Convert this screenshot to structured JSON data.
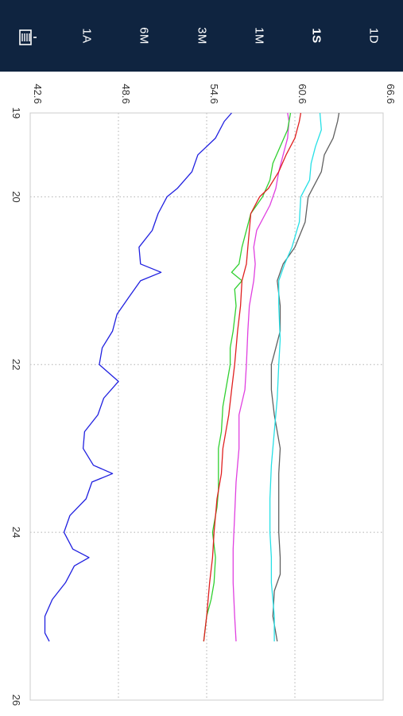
{
  "toolbar": {
    "ranges": [
      {
        "id": "1D",
        "label": "1D",
        "selected": false
      },
      {
        "id": "1S",
        "label": "1S",
        "selected": true
      },
      {
        "id": "1M",
        "label": "1M",
        "selected": false
      },
      {
        "id": "3M",
        "label": "3M",
        "selected": false
      },
      {
        "id": "6M",
        "label": "6M",
        "selected": false
      },
      {
        "id": "1A",
        "label": "1A",
        "selected": false
      }
    ],
    "menu_icon": "list-menu-icon"
  },
  "chart_data": {
    "type": "line",
    "title": "",
    "xlabel": "",
    "ylabel": "",
    "xlim": [
      19,
      26
    ],
    "ylim": [
      42.6,
      66.6
    ],
    "x_ticks": [
      "19",
      "20",
      "22",
      "24",
      "26"
    ],
    "y_ticks": [
      "42.6",
      "48.6",
      "54.6",
      "60.6",
      "66.6"
    ],
    "grid": true,
    "series": [
      {
        "color": "#606060",
        "points": [
          [
            19,
            63.6
          ],
          [
            19.1,
            63.5
          ],
          [
            19.3,
            63.2
          ],
          [
            19.5,
            62.6
          ],
          [
            19.7,
            62.4
          ],
          [
            19.8,
            62.1
          ],
          [
            20,
            61.5
          ],
          [
            20.3,
            61.3
          ],
          [
            20.6,
            60.6
          ],
          [
            20.8,
            59.8
          ],
          [
            21,
            59.4
          ],
          [
            21.3,
            59.6
          ],
          [
            21.6,
            59.6
          ],
          [
            21.8,
            59.3
          ],
          [
            22,
            59.0
          ],
          [
            22.3,
            59.0
          ],
          [
            22.6,
            59.2
          ],
          [
            23,
            59.6
          ],
          [
            23.3,
            59.5
          ],
          [
            23.6,
            59.5
          ],
          [
            24,
            59.5
          ],
          [
            24.3,
            59.6
          ],
          [
            24.5,
            59.6
          ],
          [
            24.7,
            59.2
          ],
          [
            25,
            59.1
          ],
          [
            25.3,
            59.4
          ]
        ]
      },
      {
        "color": "#26e0e6",
        "points": [
          [
            19,
            62.3
          ],
          [
            19.2,
            62.4
          ],
          [
            19.4,
            62.0
          ],
          [
            19.6,
            61.7
          ],
          [
            19.8,
            61.6
          ],
          [
            20,
            61.0
          ],
          [
            20.3,
            60.9
          ],
          [
            20.6,
            60.4
          ],
          [
            20.8,
            59.9
          ],
          [
            21,
            59.5
          ],
          [
            21.3,
            59.5
          ],
          [
            21.7,
            59.6
          ],
          [
            22,
            59.5
          ],
          [
            22.4,
            59.4
          ],
          [
            22.8,
            59.2
          ],
          [
            23.2,
            59.0
          ],
          [
            23.6,
            58.9
          ],
          [
            24,
            58.9
          ],
          [
            24.3,
            59.0
          ],
          [
            24.6,
            59.0
          ],
          [
            25,
            59.2
          ],
          [
            25.3,
            59.2
          ]
        ]
      },
      {
        "color": "#e040e0",
        "points": [
          [
            19,
            60.1
          ],
          [
            19.1,
            60.2
          ],
          [
            19.3,
            60.1
          ],
          [
            19.5,
            59.8
          ],
          [
            19.7,
            59.5
          ],
          [
            19.9,
            59.3
          ],
          [
            20.1,
            58.9
          ],
          [
            20.4,
            58.0
          ],
          [
            20.6,
            57.8
          ],
          [
            20.8,
            57.9
          ],
          [
            21,
            57.8
          ],
          [
            21.3,
            57.5
          ],
          [
            21.6,
            57.4
          ],
          [
            22,
            57.3
          ],
          [
            22.3,
            57.2
          ],
          [
            22.6,
            56.8
          ],
          [
            23,
            56.8
          ],
          [
            23.4,
            56.6
          ],
          [
            23.8,
            56.5
          ],
          [
            24.2,
            56.4
          ],
          [
            24.6,
            56.4
          ],
          [
            25,
            56.5
          ],
          [
            25.3,
            56.6
          ]
        ]
      },
      {
        "color": "#30d030",
        "points": [
          [
            19,
            60.3
          ],
          [
            19.2,
            60.1
          ],
          [
            19.4,
            59.6
          ],
          [
            19.6,
            59.1
          ],
          [
            19.8,
            58.9
          ],
          [
            20,
            58.4
          ],
          [
            20.2,
            57.6
          ],
          [
            20.4,
            57.3
          ],
          [
            20.6,
            57.0
          ],
          [
            20.8,
            56.8
          ],
          [
            20.9,
            56.3
          ],
          [
            21,
            57.0
          ],
          [
            21.1,
            56.5
          ],
          [
            21.3,
            56.6
          ],
          [
            21.6,
            56.4
          ],
          [
            21.8,
            56.2
          ],
          [
            22,
            56.2
          ],
          [
            22.2,
            56.0
          ],
          [
            22.5,
            55.7
          ],
          [
            22.8,
            55.6
          ],
          [
            23,
            55.4
          ],
          [
            23.2,
            55.4
          ],
          [
            23.5,
            55.4
          ],
          [
            23.7,
            55.3
          ],
          [
            24,
            55.0
          ],
          [
            24.3,
            55.2
          ],
          [
            24.6,
            55.1
          ],
          [
            24.8,
            54.9
          ],
          [
            25,
            54.6
          ],
          [
            25.3,
            54.4
          ]
        ]
      },
      {
        "color": "#e02020",
        "points": [
          [
            19,
            61.0
          ],
          [
            19.1,
            60.9
          ],
          [
            19.3,
            60.6
          ],
          [
            19.5,
            60.0
          ],
          [
            19.7,
            59.5
          ],
          [
            19.9,
            58.8
          ],
          [
            20,
            58.2
          ],
          [
            20.2,
            57.6
          ],
          [
            20.4,
            57.5
          ],
          [
            20.6,
            57.4
          ],
          [
            20.8,
            57.3
          ],
          [
            21,
            57.0
          ],
          [
            21.3,
            56.9
          ],
          [
            21.6,
            56.7
          ],
          [
            22,
            56.5
          ],
          [
            22.3,
            56.3
          ],
          [
            22.6,
            56.1
          ],
          [
            23,
            55.7
          ],
          [
            23.3,
            55.6
          ],
          [
            23.6,
            55.3
          ],
          [
            24,
            55.1
          ],
          [
            24.3,
            55.0
          ],
          [
            24.6,
            54.8
          ],
          [
            25,
            54.6
          ],
          [
            25.3,
            54.4
          ]
        ]
      },
      {
        "color": "#2020e0",
        "points": [
          [
            19,
            56.3
          ],
          [
            19.1,
            55.8
          ],
          [
            19.3,
            55.2
          ],
          [
            19.5,
            54.0
          ],
          [
            19.7,
            53.6
          ],
          [
            19.9,
            52.6
          ],
          [
            20,
            51.9
          ],
          [
            20.2,
            51.3
          ],
          [
            20.4,
            50.9
          ],
          [
            20.6,
            50.0
          ],
          [
            20.8,
            50.1
          ],
          [
            20.9,
            51.5
          ],
          [
            21,
            50.1
          ],
          [
            21.2,
            49.3
          ],
          [
            21.4,
            48.5
          ],
          [
            21.6,
            48.2
          ],
          [
            21.8,
            47.5
          ],
          [
            22,
            47.3
          ],
          [
            22.2,
            48.6
          ],
          [
            22.4,
            47.6
          ],
          [
            22.6,
            47.2
          ],
          [
            22.8,
            46.3
          ],
          [
            23,
            46.2
          ],
          [
            23.2,
            46.9
          ],
          [
            23.3,
            48.2
          ],
          [
            23.4,
            46.8
          ],
          [
            23.6,
            46.4
          ],
          [
            23.8,
            45.3
          ],
          [
            24,
            44.9
          ],
          [
            24.2,
            45.5
          ],
          [
            24.3,
            46.6
          ],
          [
            24.4,
            45.6
          ],
          [
            24.6,
            45.0
          ],
          [
            24.8,
            44.1
          ],
          [
            25,
            43.6
          ],
          [
            25.2,
            43.6
          ],
          [
            25.3,
            43.9
          ]
        ]
      }
    ]
  }
}
